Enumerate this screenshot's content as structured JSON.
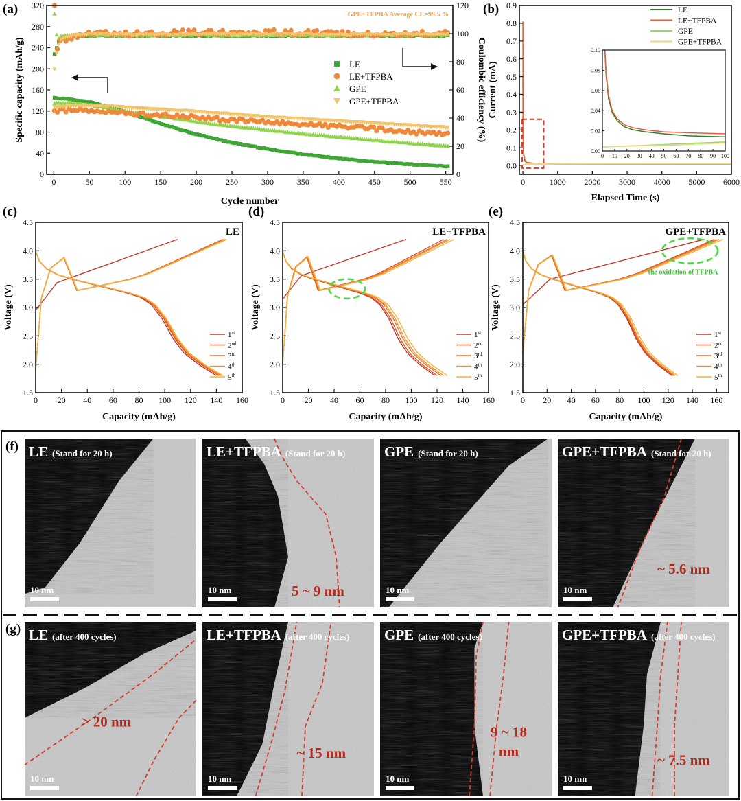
{
  "colors": {
    "LE": "#3fa535",
    "LE_TFPBA": "#f0883a",
    "GPE": "#8fd44a",
    "GPE_TFPBA": "#f2c46c",
    "b_LE": "#2f7d2a",
    "b_LE_TFPBA": "#e85c3a",
    "b_GPE": "#97d86a",
    "b_GPE_TFPBA": "#f1d57a",
    "cyc1": "#c0392b",
    "cyc2": "#d9572a",
    "cyc3": "#e8742c",
    "cyc4": "#f0952e",
    "cyc5": "#f6b23a",
    "dashed_red": "#d63b2a",
    "dashed_green": "#4fd84a",
    "annot_red": "#b52a1c",
    "annot_orange": "#f0a050"
  },
  "chart_data": [
    {
      "id": "a",
      "panel_label": "(a)",
      "type": "scatter",
      "xlabel": "Cycle number",
      "ylabel": "Specific capacity (mAh/g)",
      "y2label": "Coulombic efficiency (%)",
      "xlim": [
        -10,
        560
      ],
      "ylim": [
        0,
        320
      ],
      "y2lim": [
        0,
        120
      ],
      "xticks": [
        0,
        50,
        100,
        150,
        200,
        250,
        300,
        350,
        400,
        450,
        500,
        550
      ],
      "yticks": [
        0,
        40,
        80,
        120,
        160,
        200,
        240,
        280,
        320
      ],
      "y2ticks": [
        0,
        20,
        40,
        60,
        80,
        100,
        120
      ],
      "annotation": "GPE+TFPBA Average CE=99.5 %",
      "legend": [
        "LE",
        "LE+TFPBA",
        "GPE",
        "GPE+TFPBA"
      ],
      "legend_position": "center-right",
      "capacity_series": [
        {
          "name": "LE",
          "key": "LE",
          "x": [
            1,
            25,
            50,
            75,
            100,
            150,
            200,
            250,
            300,
            350,
            400,
            450,
            500,
            550
          ],
          "y": [
            145,
            142,
            137,
            128,
            118,
            96,
            76,
            60,
            48,
            38,
            30,
            24,
            19,
            15
          ]
        },
        {
          "name": "LE+TFPBA",
          "key": "LE_TFPBA",
          "x": [
            1,
            25,
            50,
            75,
            100,
            150,
            200,
            250,
            300,
            350,
            400,
            450,
            500,
            550
          ],
          "y": [
            120,
            122,
            120,
            118,
            116,
            112,
            108,
            103,
            99,
            95,
            91,
            86,
            80,
            76
          ]
        },
        {
          "name": "GPE",
          "key": "GPE",
          "x": [
            1,
            25,
            50,
            75,
            100,
            150,
            200,
            250,
            300,
            350,
            400,
            450,
            500,
            550
          ],
          "y": [
            135,
            135,
            132,
            126,
            120,
            110,
            100,
            91,
            84,
            77,
            71,
            65,
            59,
            54
          ]
        },
        {
          "name": "GPE+TFPBA",
          "key": "GPE_TFPBA",
          "x": [
            1,
            25,
            50,
            75,
            100,
            150,
            200,
            250,
            300,
            350,
            400,
            450,
            500,
            550
          ],
          "y": [
            127,
            130,
            130,
            129,
            127,
            123,
            119,
            114,
            109,
            105,
            101,
            97,
            93,
            89
          ]
        }
      ],
      "ce_series": [
        {
          "name": "LE",
          "key": "LE",
          "x": [
            1,
            5,
            10,
            25,
            50,
            100,
            200,
            300,
            400,
            500,
            550
          ],
          "y": [
            85,
            92,
            96,
            98,
            98.5,
            98.5,
            98.5,
            98.5,
            98.5,
            98.5,
            98.5
          ]
        },
        {
          "name": "LE+TFPBA",
          "key": "LE_TFPBA",
          "x": [
            1,
            5,
            10,
            25,
            50,
            100,
            200,
            300,
            400,
            500,
            550
          ],
          "y": [
            120,
            90,
            95,
            97,
            100,
            100,
            101,
            101,
            100,
            100,
            100
          ]
        },
        {
          "name": "GPE",
          "key": "GPE",
          "x": [
            1,
            5,
            10,
            25,
            50,
            100,
            200,
            300,
            400,
            500,
            550
          ],
          "y": [
            114,
            95,
            98,
            99,
            99,
            99,
            99,
            99,
            99,
            99,
            99
          ]
        },
        {
          "name": "GPE+TFPBA",
          "key": "GPE_TFPBA",
          "x": [
            1,
            5,
            10,
            25,
            50,
            100,
            200,
            300,
            400,
            500,
            550
          ],
          "y": [
            75,
            90,
            96,
            98.5,
            99.5,
            99.5,
            99.5,
            99.5,
            99.5,
            99.5,
            99.5
          ]
        }
      ]
    },
    {
      "id": "b",
      "panel_label": "(b)",
      "type": "line",
      "xlabel": "Elapsed Time (s)",
      "ylabel": "Current (mA)",
      "xlim": [
        -100,
        6000
      ],
      "ylim": [
        -0.05,
        0.9
      ],
      "xticks": [
        0,
        1000,
        2000,
        3000,
        4000,
        5000,
        6000
      ],
      "yticks": [
        0.0,
        0.1,
        0.2,
        0.3,
        0.4,
        0.5,
        0.6,
        0.7,
        0.8,
        0.9
      ],
      "legend": [
        "LE",
        "LE+TFPBA",
        "GPE",
        "GPE+TFPBA"
      ],
      "legend_position": "top-right",
      "series": [
        {
          "name": "LE",
          "key": "b_LE",
          "x": [
            0,
            5,
            20,
            50,
            100,
            300,
            1000,
            6000
          ],
          "y": [
            0.5,
            0.2,
            0.06,
            0.03,
            0.015,
            0.01,
            0.008,
            0.007
          ]
        },
        {
          "name": "LE+TFPBA",
          "key": "b_LE_TFPBA",
          "x": [
            0,
            5,
            20,
            50,
            100,
            300,
            1000,
            6000
          ],
          "y": [
            0.81,
            0.25,
            0.07,
            0.035,
            0.018,
            0.012,
            0.009,
            0.008
          ]
        },
        {
          "name": "GPE",
          "key": "b_GPE",
          "x": [
            0,
            50,
            100,
            1000,
            6000
          ],
          "y": [
            0.004,
            0.005,
            0.008,
            0.008,
            0.008
          ]
        },
        {
          "name": "GPE+TFPBA",
          "key": "b_GPE_TFPBA",
          "x": [
            0,
            50,
            100,
            1000,
            6000
          ],
          "y": [
            0.004,
            0.006,
            0.009,
            0.009,
            0.009
          ]
        }
      ],
      "inset": {
        "xlim": [
          0,
          100
        ],
        "ylim": [
          0,
          0.1
        ],
        "xticks": [
          0,
          10,
          20,
          30,
          40,
          50,
          60,
          70,
          80,
          90,
          100
        ],
        "yticks": [
          0.0,
          0.02,
          0.04,
          0.06,
          0.08,
          0.1
        ],
        "series": [
          {
            "name": "LE",
            "key": "b_LE",
            "x": [
              2,
              3,
              5,
              8,
              12,
              18,
              25,
              35,
              50,
              70,
              100
            ],
            "y": [
              0.1,
              0.075,
              0.052,
              0.038,
              0.03,
              0.024,
              0.021,
              0.019,
              0.017,
              0.015,
              0.014
            ]
          },
          {
            "name": "LE+TFPBA",
            "key": "b_LE_TFPBA",
            "x": [
              2,
              3,
              5,
              8,
              12,
              18,
              25,
              35,
              50,
              70,
              100
            ],
            "y": [
              0.1,
              0.078,
              0.055,
              0.04,
              0.032,
              0.026,
              0.023,
              0.021,
              0.019,
              0.018,
              0.017
            ]
          },
          {
            "name": "GPE",
            "key": "b_GPE",
            "x": [
              0,
              20,
              40,
              60,
              80,
              100
            ],
            "y": [
              0.004,
              0.005,
              0.006,
              0.007,
              0.008,
              0.009
            ]
          },
          {
            "name": "GPE+TFPBA",
            "key": "b_GPE_TFPBA",
            "x": [
              0,
              20,
              40,
              60,
              80,
              100
            ],
            "y": [
              0.004,
              0.005,
              0.0055,
              0.006,
              0.007,
              0.008
            ]
          }
        ]
      }
    },
    {
      "id": "c",
      "panel_label": "(c)",
      "type": "line",
      "title": "LE",
      "xlabel": "Capacity (mAh/g)",
      "ylabel": "Voltage (V)",
      "xlim": [
        0,
        160
      ],
      "ylim": [
        1.5,
        4.5
      ],
      "xticks": [
        0,
        20,
        40,
        60,
        80,
        100,
        120,
        140,
        160
      ],
      "yticks": [
        1.5,
        2.0,
        2.5,
        3.0,
        3.5,
        4.0,
        4.5
      ],
      "legend": [
        {
          "num": "1",
          "sup": "st"
        },
        {
          "num": "2",
          "sup": "nd"
        },
        {
          "num": "3",
          "sup": "rd"
        },
        {
          "num": "4",
          "sup": "th"
        },
        {
          "num": "5",
          "sup": "th"
        }
      ],
      "legend_position": "bottom-right",
      "charge_capacity": [
        110,
        145,
        146,
        147,
        148
      ],
      "discharge_capacity": [
        140,
        142,
        143,
        144,
        145
      ],
      "charge_start_v": [
        2.95,
        1.9,
        1.9,
        1.9,
        1.9
      ],
      "first_charge_shape": "direct"
    },
    {
      "id": "d",
      "panel_label": "(d)",
      "type": "line",
      "title": "LE+TFPBA",
      "xlabel": "Capacity (mAh/g)",
      "ylabel": "Voltage (V)",
      "xlim": [
        0,
        160
      ],
      "ylim": [
        1.5,
        4.5
      ],
      "xticks": [
        0,
        20,
        40,
        60,
        80,
        100,
        120,
        140,
        160
      ],
      "yticks": [
        1.5,
        2.0,
        2.5,
        3.0,
        3.5,
        4.0,
        4.5
      ],
      "legend": [
        {
          "num": "1",
          "sup": "st"
        },
        {
          "num": "2",
          "sup": "nd"
        },
        {
          "num": "3",
          "sup": "rd"
        },
        {
          "num": "4",
          "sup": "th"
        },
        {
          "num": "5",
          "sup": "th"
        }
      ],
      "legend_position": "bottom-right",
      "charge_capacity": [
        96,
        125,
        128,
        130,
        133
      ],
      "discharge_capacity": [
        118,
        120,
        123,
        125,
        128
      ],
      "charge_start_v": [
        3.15,
        2.0,
        2.0,
        2.0,
        2.0
      ],
      "first_charge_shape": "direct",
      "highlight": {
        "cx": 50,
        "cy": 3.33,
        "rx": 14,
        "ry": 0.17
      }
    },
    {
      "id": "e",
      "panel_label": "(e)",
      "type": "line",
      "title": "GPE+TFPBA",
      "xlabel": "Capacity (mAh/g)",
      "ylabel": "Voltage (V)",
      "xlim": [
        0,
        170
      ],
      "ylim": [
        1.5,
        4.5
      ],
      "xticks": [
        0,
        20,
        40,
        60,
        80,
        100,
        120,
        140,
        160
      ],
      "yticks": [
        1.5,
        2.0,
        2.5,
        3.0,
        3.5,
        4.0,
        4.5
      ],
      "legend": [
        {
          "num": "1",
          "sup": "st"
        },
        {
          "num": "2",
          "sup": "nd"
        },
        {
          "num": "3",
          "sup": "rd"
        },
        {
          "num": "4",
          "sup": "th"
        },
        {
          "num": "5",
          "sup": "th"
        }
      ],
      "legend_position": "bottom-right",
      "charge_capacity": [
        150,
        158,
        160,
        162,
        165
      ],
      "discharge_capacity": [
        123,
        124,
        125,
        126,
        128
      ],
      "charge_start_v": [
        3.05,
        2.2,
        2.2,
        2.2,
        2.2
      ],
      "first_charge_shape": "direct",
      "highlight": {
        "cx": 138,
        "cy": 4.0,
        "rx": 23,
        "ry": 0.22
      },
      "highlight_label": "the oxidation of TFPBA"
    }
  ],
  "tem": {
    "row_f_label": "(f)",
    "row_g_label": "(g)",
    "row_f": [
      {
        "name": "LE",
        "note": "(Stand for 20 h)",
        "scale": "10 nm",
        "thickness": ""
      },
      {
        "name": "LE+TFPBA",
        "note": "(Stand for 20 h)",
        "scale": "10 nm",
        "thickness": "5 ~ 9 nm"
      },
      {
        "name": "GPE",
        "note": "(Stand for 20 h)",
        "scale": "10 nm",
        "thickness": ""
      },
      {
        "name": "GPE+TFPBA",
        "note": "(Stand for 20 h)",
        "scale": "10 nm",
        "thickness": "~ 5.6 nm"
      }
    ],
    "row_g": [
      {
        "name": "LE",
        "note": "(after 400 cycles)",
        "scale": "10 nm",
        "thickness": "> 20 nm"
      },
      {
        "name": "LE+TFPBA",
        "note": "(after 400 cycles)",
        "scale": "10 nm",
        "thickness": "~ 15 nm"
      },
      {
        "name": "GPE",
        "note": "(after 400 cycles)",
        "scale": "10 nm",
        "thickness_line1": "9 ~ 18",
        "thickness_line2": "nm"
      },
      {
        "name": "GPE+TFPBA",
        "note": "(after 400 cycles)",
        "scale": "10 nm",
        "thickness": "~ 7.5 nm"
      }
    ]
  }
}
